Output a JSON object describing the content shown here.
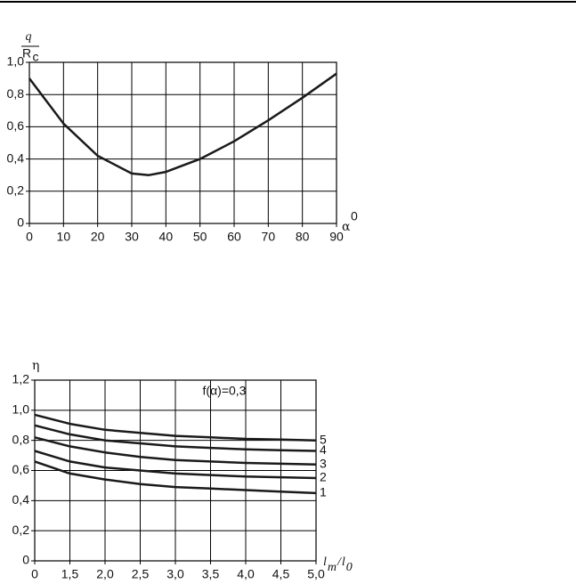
{
  "chart_data": [
    {
      "type": "line",
      "ylabel_numerator": "q",
      "ylabel_denominator": "R",
      "ylabel_subscript": "c",
      "xlabel": "α",
      "xlabel_superscript": "0",
      "x": [
        0,
        10,
        20,
        30,
        35,
        40,
        50,
        60,
        70,
        80,
        90
      ],
      "values": [
        0.9,
        0.62,
        0.42,
        0.31,
        0.3,
        0.32,
        0.4,
        0.51,
        0.64,
        0.78,
        0.93
      ],
      "color": "#1a1a1a",
      "xlim": [
        0,
        90
      ],
      "xticks": [
        0,
        10,
        20,
        30,
        40,
        50,
        60,
        70,
        80,
        90
      ],
      "ylim": [
        0,
        1.0
      ],
      "yticks": [
        0,
        {
          "value": 0.2,
          "label": "0,2"
        },
        {
          "value": 0.4,
          "label": "0,4"
        },
        {
          "value": 0.6,
          "label": "0,6"
        },
        {
          "value": 0.8,
          "label": "0,8"
        },
        {
          "value": 1.0,
          "label": "1,0"
        }
      ],
      "grid": true
    },
    {
      "type": "line",
      "ylabel": "η",
      "xlabel_parts": [
        {
          "text": "l",
          "sub": false
        },
        {
          "text": "m",
          "sub": true
        },
        {
          "text": "/",
          "sub": false
        },
        {
          "text": "l",
          "sub": false
        },
        {
          "text": "0",
          "sub": true
        }
      ],
      "annotation": "f(α)=0,3",
      "x": [
        1.0,
        1.5,
        2.0,
        2.5,
        3.0,
        3.5,
        4.0,
        4.5,
        5.0
      ],
      "series": [
        {
          "name": "1",
          "color": "#1a1a1a",
          "values": [
            0.66,
            0.58,
            0.54,
            0.51,
            0.49,
            0.48,
            0.47,
            0.46,
            0.45
          ]
        },
        {
          "name": "2",
          "color": "#1a1a1a",
          "values": [
            0.73,
            0.66,
            0.62,
            0.6,
            0.58,
            0.57,
            0.56,
            0.555,
            0.55
          ]
        },
        {
          "name": "3",
          "color": "#1a1a1a",
          "values": [
            0.82,
            0.76,
            0.72,
            0.69,
            0.67,
            0.66,
            0.65,
            0.645,
            0.64
          ]
        },
        {
          "name": "4",
          "color": "#1a1a1a",
          "values": [
            0.9,
            0.84,
            0.8,
            0.78,
            0.76,
            0.75,
            0.74,
            0.735,
            0.73
          ]
        },
        {
          "name": "5",
          "color": "#1a1a1a",
          "values": [
            0.97,
            0.91,
            0.87,
            0.85,
            0.83,
            0.82,
            0.81,
            0.805,
            0.8
          ]
        }
      ],
      "xlim": [
        1.0,
        5.0
      ],
      "x_axis_break": true,
      "xticks": [
        0,
        {
          "value": 1.5,
          "label": "1,5"
        },
        {
          "value": 2.0,
          "label": "2,0"
        },
        {
          "value": 2.5,
          "label": "2,5"
        },
        {
          "value": 3.0,
          "label": "3,0"
        },
        {
          "value": 3.5,
          "label": "3,5"
        },
        {
          "value": 4.0,
          "label": "4,0"
        },
        {
          "value": 4.5,
          "label": "4,5"
        },
        {
          "value": 5.0,
          "label": "5,0"
        }
      ],
      "ylim": [
        0,
        1.2
      ],
      "yticks": [
        0,
        {
          "value": 0.2,
          "label": "0,2"
        },
        {
          "value": 0.4,
          "label": "0,4"
        },
        {
          "value": 0.6,
          "label": "0,6"
        },
        {
          "value": 0.8,
          "label": "0,8"
        },
        {
          "value": 1.0,
          "label": "1,0"
        },
        {
          "value": 1.2,
          "label": "1,2"
        }
      ],
      "grid": true
    }
  ]
}
